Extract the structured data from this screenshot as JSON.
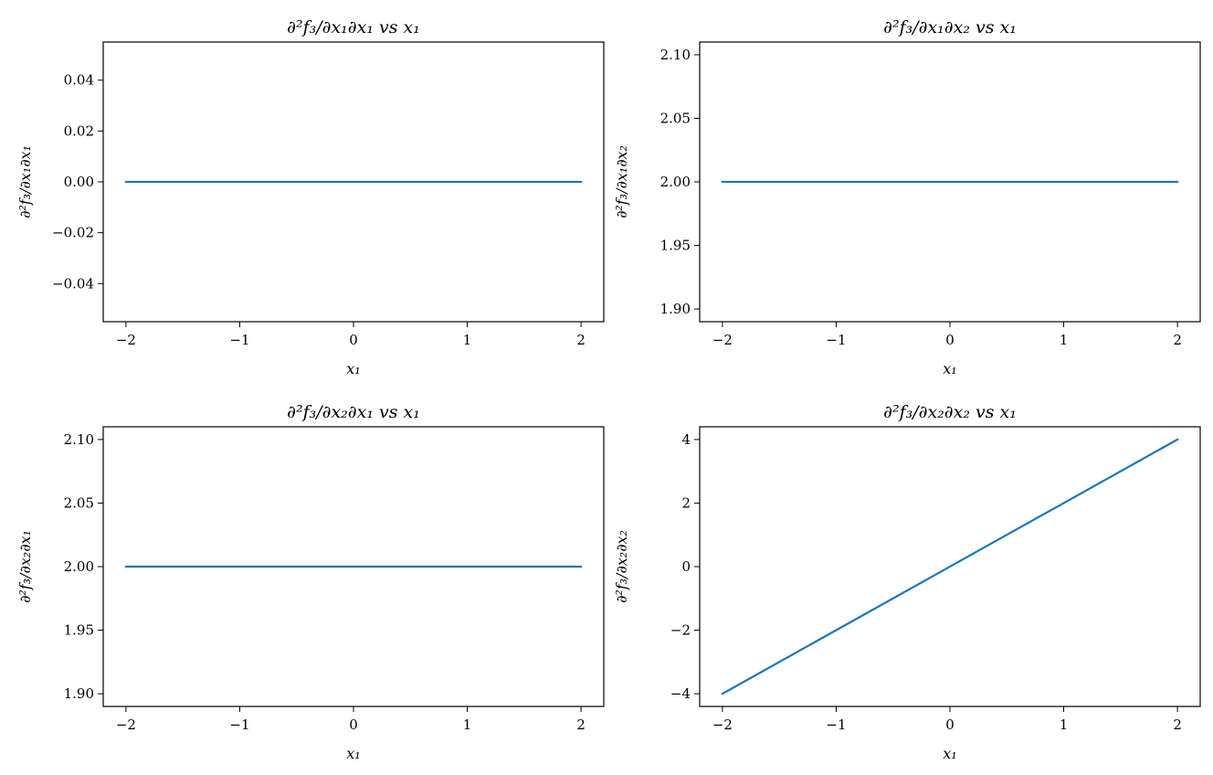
{
  "chart_data": [
    {
      "type": "line",
      "title": "∂²f₃/∂x₁∂x₁ vs x₁",
      "xlabel": "x₁",
      "ylabel": "∂²f₃/∂x₁∂x₁",
      "xlim": [
        -2.2,
        2.2
      ],
      "ylim": [
        -0.055,
        0.055
      ],
      "xticks": [
        -2,
        -1,
        0,
        1,
        2
      ],
      "xtick_labels": [
        "−2",
        "−1",
        "0",
        "1",
        "2"
      ],
      "yticks": [
        -0.04,
        -0.02,
        0,
        0.02,
        0.04
      ],
      "ytick_labels": [
        "−0.04",
        "−0.02",
        "0.00",
        "0.02",
        "0.04"
      ],
      "color": "#1f77b4",
      "x": [
        -2,
        2
      ],
      "y": [
        0,
        0
      ],
      "grid": false
    },
    {
      "type": "line",
      "title": "∂²f₃/∂x₁∂x₂ vs x₁",
      "xlabel": "x₁",
      "ylabel": "∂²f₃/∂x₁∂x₂",
      "xlim": [
        -2.2,
        2.2
      ],
      "ylim": [
        1.89,
        2.11
      ],
      "xticks": [
        -2,
        -1,
        0,
        1,
        2
      ],
      "xtick_labels": [
        "−2",
        "−1",
        "0",
        "1",
        "2"
      ],
      "yticks": [
        1.9,
        1.95,
        2.0,
        2.05,
        2.1
      ],
      "ytick_labels": [
        "1.90",
        "1.95",
        "2.00",
        "2.05",
        "2.10"
      ],
      "color": "#1f77b4",
      "x": [
        -2,
        2
      ],
      "y": [
        2,
        2
      ],
      "grid": false
    },
    {
      "type": "line",
      "title": "∂²f₃/∂x₂∂x₁ vs x₁",
      "xlabel": "x₁",
      "ylabel": "∂²f₃/∂x₂∂x₁",
      "xlim": [
        -2.2,
        2.2
      ],
      "ylim": [
        1.89,
        2.11
      ],
      "xticks": [
        -2,
        -1,
        0,
        1,
        2
      ],
      "xtick_labels": [
        "−2",
        "−1",
        "0",
        "1",
        "2"
      ],
      "yticks": [
        1.9,
        1.95,
        2.0,
        2.05,
        2.1
      ],
      "ytick_labels": [
        "1.90",
        "1.95",
        "2.00",
        "2.05",
        "2.10"
      ],
      "color": "#1f77b4",
      "x": [
        -2,
        2
      ],
      "y": [
        2,
        2
      ],
      "grid": false
    },
    {
      "type": "line",
      "title": "∂²f₃/∂x₂∂x₂ vs x₁",
      "xlabel": "x₁",
      "ylabel": "∂²f₃/∂x₂∂x₂",
      "xlim": [
        -2.2,
        2.2
      ],
      "ylim": [
        -4.4,
        4.4
      ],
      "xticks": [
        -2,
        -1,
        0,
        1,
        2
      ],
      "xtick_labels": [
        "−2",
        "−1",
        "0",
        "1",
        "2"
      ],
      "yticks": [
        -4,
        -2,
        0,
        2,
        4
      ],
      "ytick_labels": [
        "−4",
        "−2",
        "0",
        "2",
        "4"
      ],
      "color": "#1f77b4",
      "x": [
        -2,
        2
      ],
      "y": [
        -4,
        4
      ],
      "grid": false
    }
  ]
}
